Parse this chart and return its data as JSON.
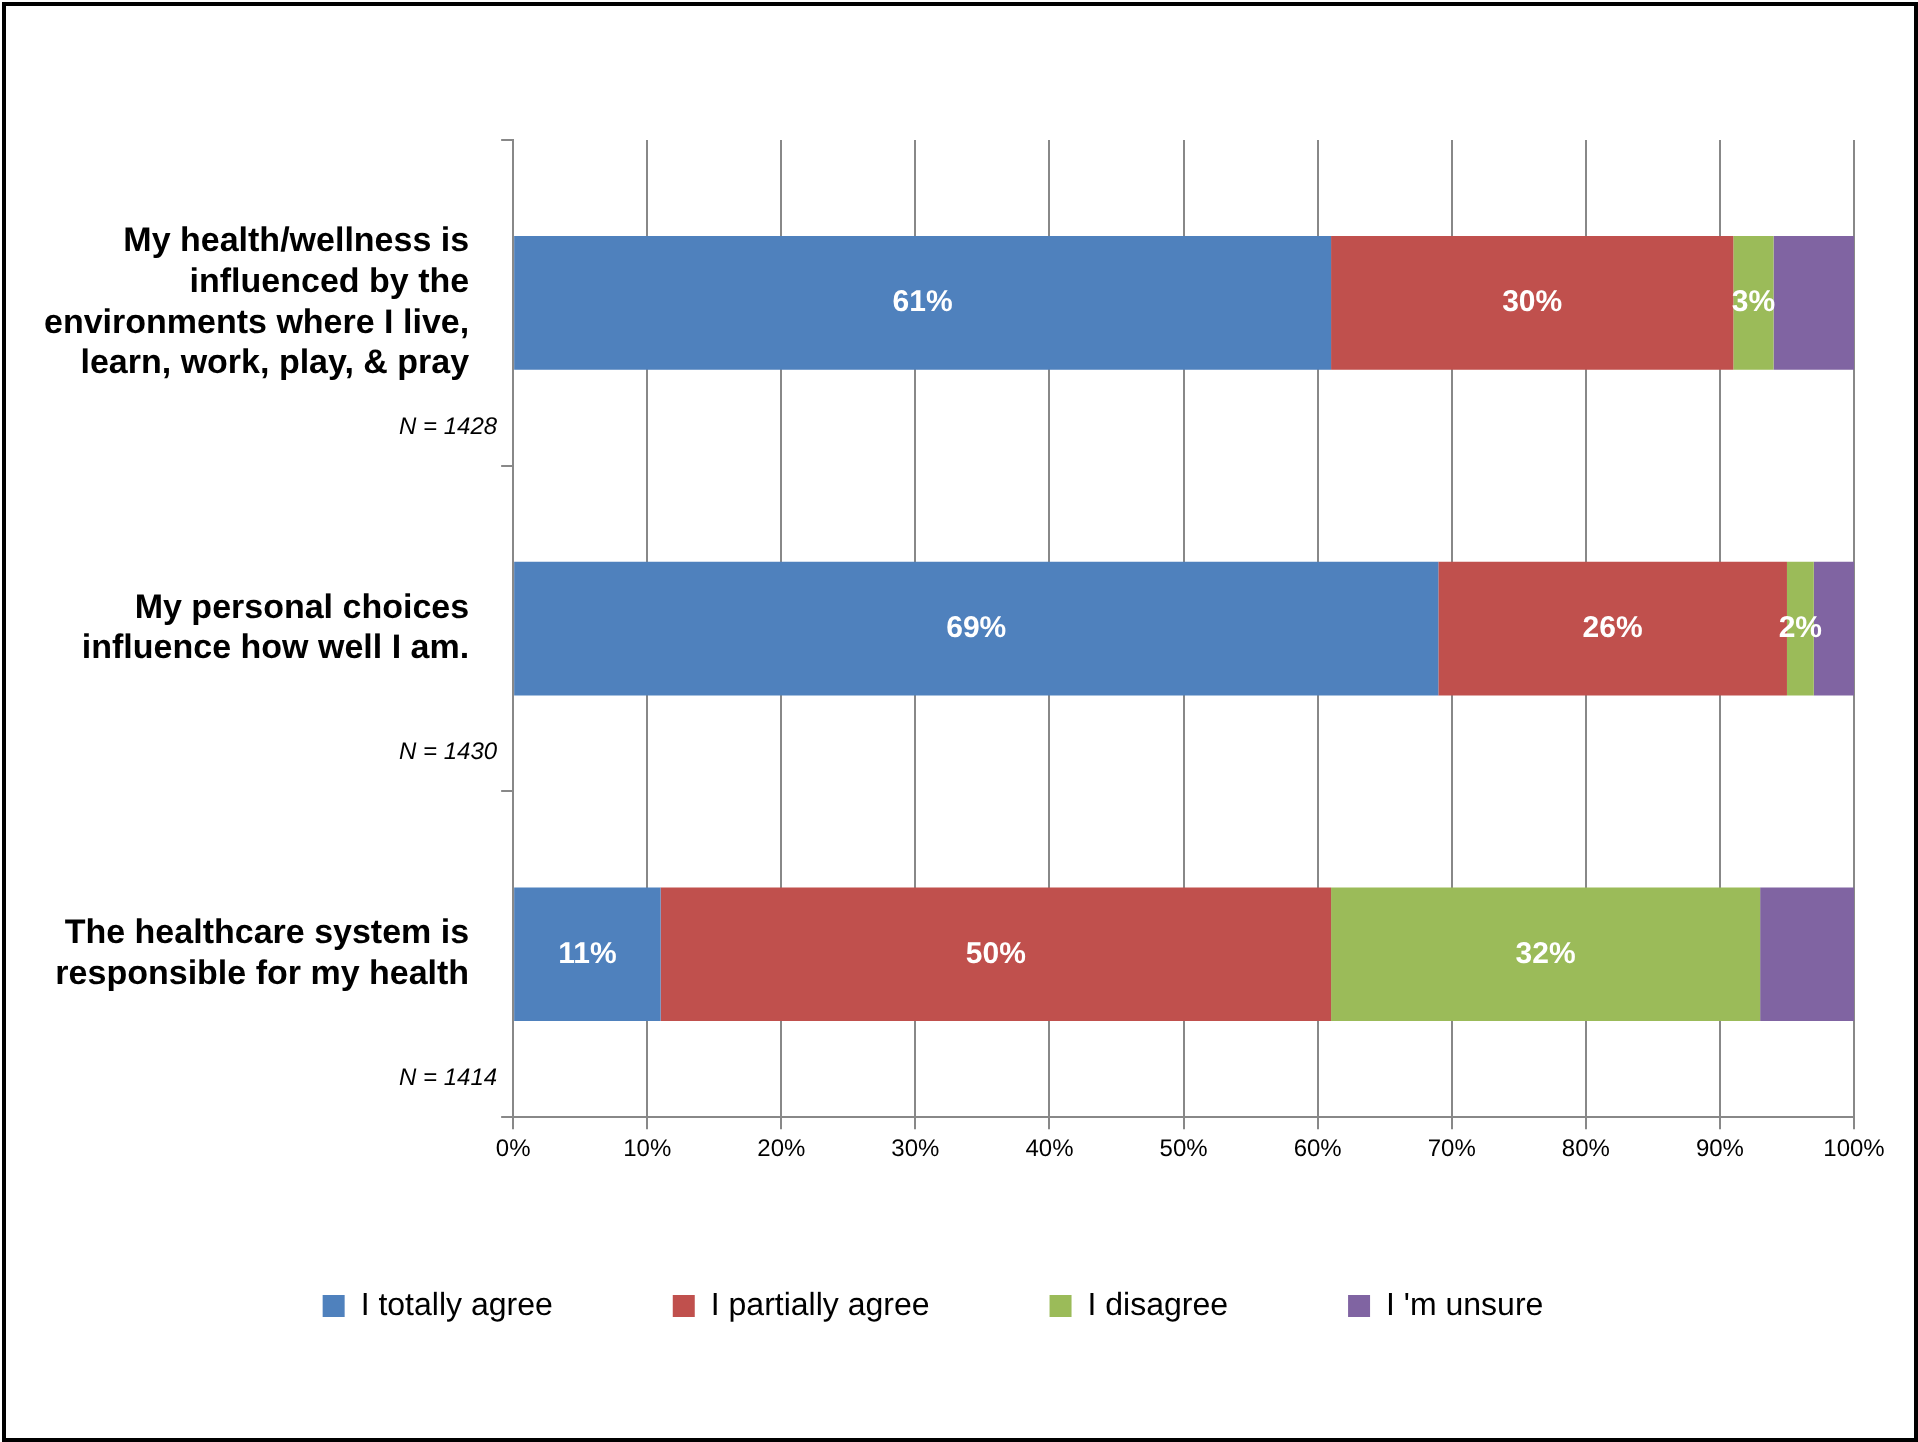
{
  "chart_data": {
    "type": "bar",
    "orientation": "horizontal",
    "stacked": true,
    "categories": [
      "My health/wellness is influenced by the environments where I live, learn, work, play, & pray",
      "My personal choices influence how well I am.",
      "The healthcare system is responsible for my health"
    ],
    "series": [
      {
        "name": "I totally agree",
        "color": "#4f81bd",
        "values": [
          61,
          69,
          11
        ],
        "value_labels": [
          "61%",
          "69%",
          "11%"
        ]
      },
      {
        "name": "I partially agree",
        "color": "#c0504d",
        "values": [
          30,
          26,
          50
        ],
        "value_labels": [
          "30%",
          "26%",
          "50%"
        ]
      },
      {
        "name": "I disagree",
        "color": "#9bbb59",
        "values": [
          3,
          2,
          32
        ],
        "value_labels": [
          "3%",
          "2%",
          "32%"
        ]
      },
      {
        "name": "I 'm unsure",
        "color": "#8064a2",
        "values": [
          6,
          3,
          7
        ],
        "value_labels": [
          null,
          null,
          null
        ]
      }
    ],
    "xlim": [
      0,
      100
    ],
    "xticks": [
      {
        "value": 0,
        "label": "0%"
      },
      {
        "value": 10,
        "label": "10%"
      },
      {
        "value": 20,
        "label": "20%"
      },
      {
        "value": 30,
        "label": "30%"
      },
      {
        "value": 40,
        "label": "40%"
      },
      {
        "value": 50,
        "label": "50%"
      },
      {
        "value": 60,
        "label": "60%"
      },
      {
        "value": 70,
        "label": "70%"
      },
      {
        "value": 80,
        "label": "80%"
      },
      {
        "value": 90,
        "label": "90%"
      },
      {
        "value": 100,
        "label": "100%"
      }
    ],
    "annotations": [
      "N = 1428",
      "N = 1430",
      "N = 1414"
    ],
    "grid": "x",
    "legend": "bottom"
  }
}
